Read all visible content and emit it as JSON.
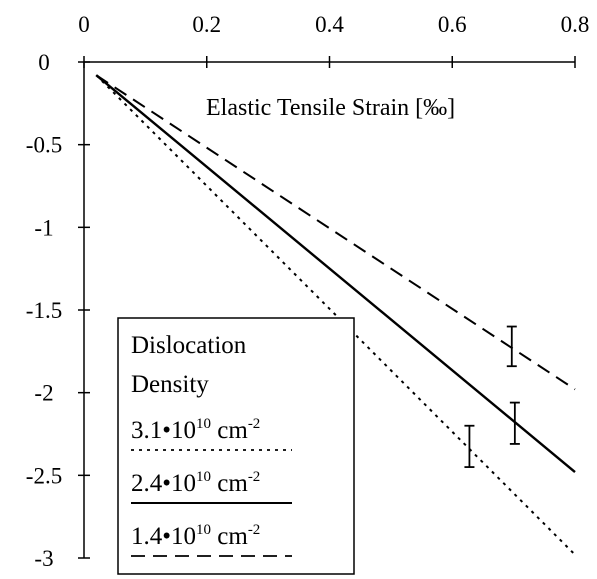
{
  "chart_data": {
    "type": "line",
    "title": "Elastic Tensile Strain [‰]",
    "xlabel": "",
    "ylabel": "",
    "xlim": [
      0,
      0.8
    ],
    "ylim": [
      -3,
      0
    ],
    "x_ticks": [
      0,
      0.2,
      0.4,
      0.6,
      0.8
    ],
    "x_tick_labels": [
      "0",
      "0.2",
      "0.4",
      "0.6",
      "0.8"
    ],
    "y_ticks": [
      0,
      -0.5,
      -1,
      -1.5,
      -2,
      -2.5,
      -3
    ],
    "y_tick_labels": [
      "0",
      "-0.5",
      "-1",
      "-1.5",
      "-2",
      "-2.5",
      "-3"
    ],
    "x_axis_position": "top",
    "grid": false,
    "legend": {
      "title_lines": [
        "Dislocation",
        "Density"
      ],
      "placement": "bottom-left",
      "unit": "cm",
      "exponent": "10",
      "unit_exponent": "-2"
    },
    "series": [
      {
        "name": "3.1•10¹⁰ cm⁻²",
        "mantissa": "3.1•10",
        "style": "dotted",
        "x": [
          0.02,
          0.8
        ],
        "y": [
          -0.08,
          -2.98
        ]
      },
      {
        "name": "2.4•10¹⁰ cm⁻²",
        "mantissa": "2.4•10",
        "style": "solid",
        "x": [
          0.02,
          0.8
        ],
        "y": [
          -0.08,
          -2.48
        ]
      },
      {
        "name": "1.4•10¹⁰ cm⁻²",
        "mantissa": "1.4•10",
        "style": "dashed",
        "x": [
          0.02,
          0.8
        ],
        "y": [
          -0.08,
          -1.98
        ]
      }
    ],
    "error_bars": [
      {
        "x": 0.628,
        "y": -2.32,
        "low": -2.45,
        "high": -2.2
      },
      {
        "x": 0.702,
        "y": -2.18,
        "low": -2.31,
        "high": -2.06
      },
      {
        "x": 0.697,
        "y": -1.72,
        "low": -1.84,
        "high": -1.6
      }
    ]
  }
}
